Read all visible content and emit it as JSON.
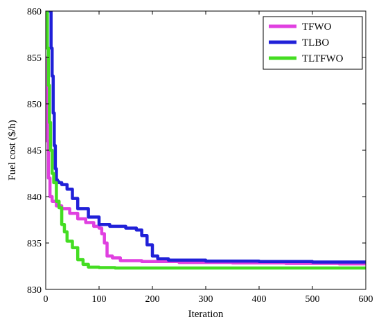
{
  "chart_data": {
    "type": "line",
    "xlabel": "Iteration",
    "ylabel": "Fuel cost ($/h)",
    "xlim": [
      0,
      600
    ],
    "ylim": [
      830,
      860
    ],
    "xticks": [
      0,
      100,
      200,
      300,
      400,
      500,
      600
    ],
    "yticks": [
      830,
      835,
      840,
      845,
      850,
      855,
      860
    ],
    "grid": false,
    "legend_position": "top-right",
    "series": [
      {
        "name": "TFWO",
        "color": "#e040e0",
        "x": [
          1,
          3,
          5,
          8,
          12,
          20,
          30,
          45,
          60,
          75,
          90,
          100,
          105,
          110,
          115,
          125,
          140,
          180,
          250,
          350,
          450,
          550,
          600
        ],
        "y": [
          855,
          846,
          842,
          840,
          839.5,
          839,
          838.7,
          838.2,
          837.6,
          837.2,
          836.8,
          836.6,
          836.0,
          835.0,
          833.6,
          833.4,
          833.1,
          833.0,
          832.9,
          832.85,
          832.8,
          832.75,
          832.7
        ]
      },
      {
        "name": "TLBO",
        "color": "#2020d8",
        "x": [
          5,
          8,
          10,
          12,
          14,
          16,
          18,
          20,
          22,
          25,
          30,
          40,
          50,
          60,
          80,
          100,
          120,
          150,
          170,
          180,
          190,
          200,
          210,
          230,
          300,
          400,
          500,
          600
        ],
        "y": [
          860,
          860,
          856,
          853,
          849,
          845.5,
          843,
          841.8,
          841.6,
          841.5,
          841.3,
          840.8,
          839.8,
          838.7,
          837.8,
          837.0,
          836.8,
          836.6,
          836.4,
          835.8,
          834.8,
          833.6,
          833.3,
          833.15,
          833.05,
          833.0,
          832.95,
          832.8
        ]
      },
      {
        "name": "TLTFWO",
        "color": "#44dd22",
        "x": [
          1,
          3,
          5,
          7,
          9,
          12,
          15,
          18,
          20,
          25,
          30,
          35,
          40,
          50,
          60,
          70,
          80,
          100,
          130,
          200,
          300,
          400,
          500,
          600
        ],
        "y": [
          860,
          856,
          852,
          848,
          845,
          842.5,
          841.5,
          841.5,
          839.5,
          838.8,
          837.0,
          836.2,
          835.2,
          834.5,
          833.2,
          832.7,
          832.4,
          832.35,
          832.3,
          832.3,
          832.3,
          832.3,
          832.3,
          832.3
        ]
      }
    ]
  }
}
